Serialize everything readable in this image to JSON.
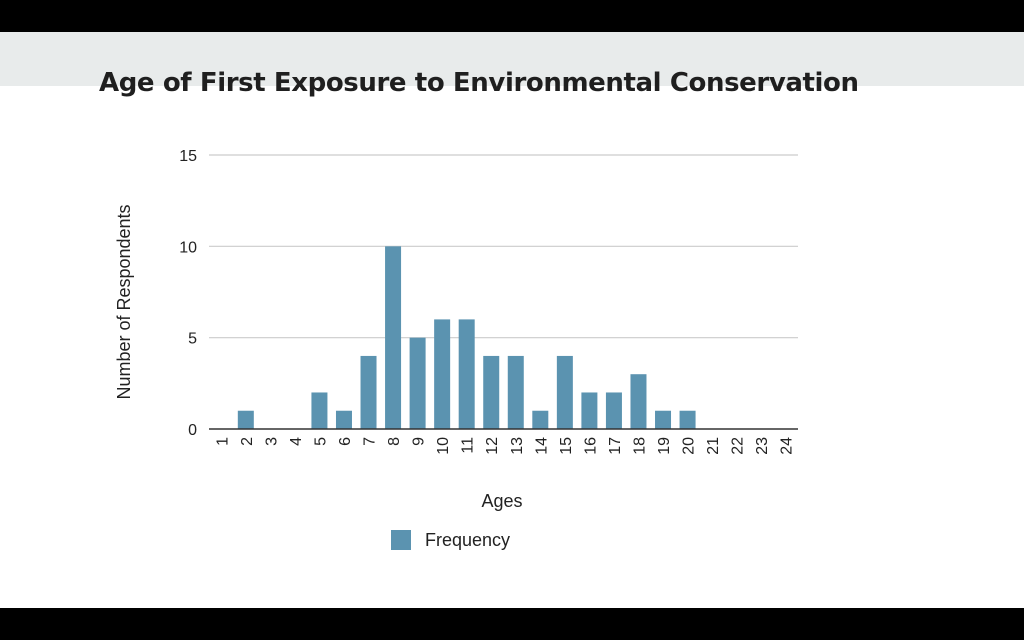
{
  "slide": {
    "title": "Age of First Exposure to Environmental Conservation"
  },
  "colors": {
    "bar": "#5b93b0",
    "grid": "#cccccc",
    "axis": "#333333",
    "header_band": "#e8ebeb"
  },
  "chart_data": {
    "type": "bar",
    "title": "",
    "xlabel": "Ages",
    "ylabel": "Number of Respondents",
    "categories": [
      "1",
      "2",
      "3",
      "4",
      "5",
      "6",
      "7",
      "8",
      "9",
      "10",
      "11",
      "12",
      "13",
      "14",
      "15",
      "16",
      "17",
      "18",
      "19",
      "20",
      "21",
      "22",
      "23",
      "24"
    ],
    "series": [
      {
        "name": "Frequency",
        "values": [
          0,
          1,
          0,
          0,
          2,
          1,
          4,
          10,
          5,
          6,
          6,
          4,
          4,
          1,
          4,
          2,
          2,
          3,
          1,
          1,
          0,
          0,
          0,
          0
        ]
      }
    ],
    "ylim": [
      0,
      15
    ],
    "yticks": [
      0,
      5,
      10,
      15
    ],
    "grid": true,
    "legend": "bottom"
  }
}
